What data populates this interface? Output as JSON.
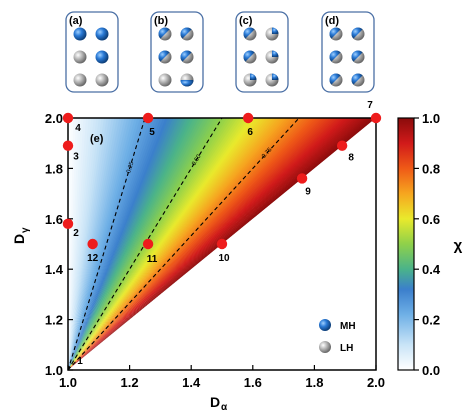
{
  "panels": [
    {
      "label": "(a)",
      "balls": [
        "MH",
        "MH",
        "LH",
        "MH",
        "LH",
        "LH"
      ]
    },
    {
      "label": "(b)",
      "balls": [
        "MIX",
        "MIX",
        "MIX",
        "MIX",
        "LH",
        "MIXB"
      ]
    },
    {
      "label": "(c)",
      "balls": [
        "MIX",
        "MIXQ",
        "MIX",
        "MIXQ",
        "MIXQ",
        "MIXQ"
      ]
    },
    {
      "label": "(d)",
      "balls": [
        "MIX",
        "MIX",
        "MIX",
        "MIX",
        "MIX",
        "MIX"
      ]
    }
  ],
  "colors": {
    "MH": "#1f6fc4",
    "LH": "#a8a8a8",
    "frame": "#4a6fa5"
  },
  "chart_data": {
    "type": "heatmap",
    "panel_label": "(e)",
    "xlabel": "D",
    "xlabel_sub": "α",
    "ylabel": "D",
    "ylabel_sub": "γ",
    "xlim": [
      1.0,
      2.0
    ],
    "ylim": [
      1.0,
      2.0
    ],
    "xticks": [
      "1.0",
      "1.2",
      "1.4",
      "1.6",
      "1.8",
      "2.0"
    ],
    "yticks": [
      "1.0",
      "1.2",
      "1.4",
      "1.6",
      "1.8",
      "2.0"
    ],
    "colorbar": {
      "label": "χ",
      "ticks": [
        "0.0",
        "0.2",
        "0.4",
        "0.6",
        "0.8",
        "1.0"
      ],
      "range": [
        0,
        1
      ]
    },
    "contours": [
      {
        "label": "0.25",
        "slope": 4.0
      },
      {
        "label": "0.50",
        "slope": 2.0
      },
      {
        "label": "0.75",
        "slope": 1.333
      }
    ],
    "points": [
      {
        "label": "1",
        "x": 1.0,
        "y": 1.0
      },
      {
        "label": "2",
        "x": 1.0,
        "y": 1.58
      },
      {
        "label": "3",
        "x": 1.0,
        "y": 1.89
      },
      {
        "label": "4",
        "x": 1.0,
        "y": 2.0
      },
      {
        "label": "5",
        "x": 1.26,
        "y": 2.0
      },
      {
        "label": "6",
        "x": 1.585,
        "y": 2.0
      },
      {
        "label": "7",
        "x": 2.0,
        "y": 2.0
      },
      {
        "label": "8",
        "x": 1.89,
        "y": 1.89
      },
      {
        "label": "9",
        "x": 1.76,
        "y": 1.76
      },
      {
        "label": "10",
        "x": 1.5,
        "y": 1.5
      },
      {
        "label": "11",
        "x": 1.26,
        "y": 1.5
      },
      {
        "label": "12",
        "x": 1.08,
        "y": 1.5
      }
    ],
    "legend": {
      "position": "bottom-right",
      "entries": [
        {
          "name": "MH",
          "color": "#1f6fc4"
        },
        {
          "name": "LH",
          "color": "#a8a8a8"
        }
      ]
    }
  }
}
